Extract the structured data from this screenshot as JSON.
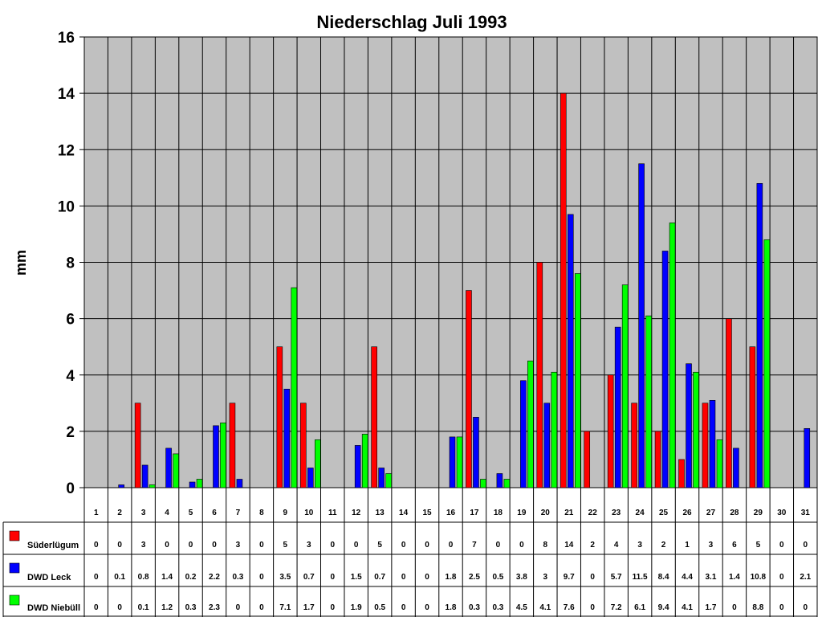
{
  "chart_data": {
    "type": "bar",
    "title": "Niederschlag Juli 1993",
    "ylabel": "mm",
    "ylim": [
      0,
      16
    ],
    "yticks": [
      0,
      2,
      4,
      6,
      8,
      10,
      12,
      14,
      16
    ],
    "grid": true,
    "legend": "data-table-left",
    "plot_background": "#c0c0c0",
    "categories": [
      "1",
      "2",
      "3",
      "4",
      "5",
      "6",
      "7",
      "8",
      "9",
      "10",
      "11",
      "12",
      "13",
      "14",
      "15",
      "16",
      "17",
      "18",
      "19",
      "20",
      "21",
      "22",
      "23",
      "24",
      "25",
      "26",
      "27",
      "28",
      "29",
      "30",
      "31"
    ],
    "series": [
      {
        "name": "Süderlügum",
        "color": "#ff0000",
        "values": [
          0,
          0,
          3,
          0,
          0,
          0,
          3,
          0,
          5,
          3,
          0,
          0,
          5,
          0,
          0,
          0,
          7,
          0,
          0,
          8,
          14,
          2,
          4,
          3,
          2,
          1,
          3,
          6,
          5,
          0,
          0
        ],
        "labels": [
          "0",
          "0",
          "3",
          "0",
          "0",
          "0",
          "3",
          "0",
          "5",
          "3",
          "0",
          "0",
          "5",
          "0",
          "0",
          "0",
          "7",
          "0",
          "0",
          "8",
          "14",
          "2",
          "4",
          "3",
          "2",
          "1",
          "3",
          "6",
          "5",
          "0",
          "0"
        ]
      },
      {
        "name": "DWD Leck",
        "color": "#0000ff",
        "values": [
          0,
          0.1,
          0.8,
          1.4,
          0.2,
          2.2,
          0.3,
          0,
          3.5,
          0.7,
          0,
          1.5,
          0.7,
          0,
          0,
          1.8,
          2.5,
          0.5,
          3.8,
          3,
          9.7,
          0,
          5.7,
          11.5,
          8.4,
          4.4,
          3.1,
          1.4,
          10.8,
          0,
          2.1
        ],
        "labels": [
          "0",
          "0.1",
          "0.8",
          "1.4",
          "0.2",
          "2.2",
          "0.3",
          "0",
          "3.5",
          "0.7",
          "0",
          "1.5",
          "0.7",
          "0",
          "0",
          "1.8",
          "2.5",
          "0.5",
          "3.8",
          "3",
          "9.7",
          "0",
          "5.7",
          "11.5",
          "8.4",
          "4.4",
          "3.1",
          "1.4",
          "10.8",
          "0",
          "2.1"
        ]
      },
      {
        "name": "DWD Niebüll",
        "color": "#00ff00",
        "values": [
          0,
          0,
          0.1,
          1.2,
          0.3,
          2.3,
          0,
          0,
          7.1,
          1.7,
          0,
          1.9,
          0.5,
          0,
          0,
          1.8,
          0.3,
          0.3,
          4.5,
          4.1,
          7.6,
          0,
          7.2,
          6.1,
          9.4,
          4.1,
          1.7,
          0,
          8.8,
          0,
          0
        ],
        "labels": [
          "0",
          "0",
          "0.1",
          "1.2",
          "0.3",
          "2.3",
          "0",
          "0",
          "7.1",
          "1.7",
          "0",
          "1.9",
          "0.5",
          "0",
          "0",
          "1.8",
          "0.3",
          "0.3",
          "4.5",
          "4.1",
          "7.6",
          "0",
          "7.2",
          "6.1",
          "9.4",
          "4.1",
          "1.7",
          "0",
          "8.8",
          "0",
          "0"
        ]
      }
    ]
  }
}
